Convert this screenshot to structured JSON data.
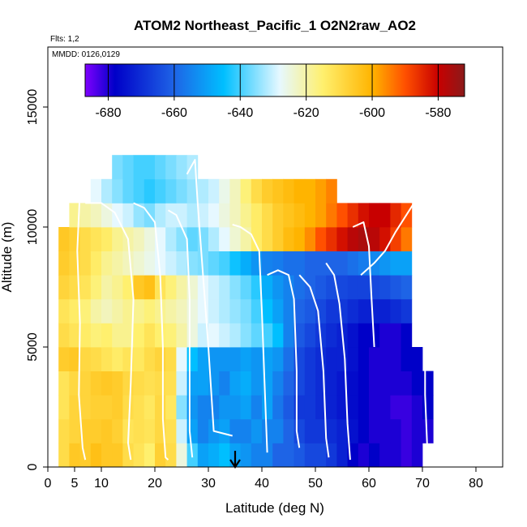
{
  "chart_data": {
    "type": "heatmap",
    "title": "ATOM2 Northeast_Pacific_1 O2N2raw_AO2",
    "flights_label": "Flts: 1,2",
    "dates_label": "MMDD: 0126,0129",
    "xlabel": "Latitude (deg N)",
    "ylabel": "Altitude (m)",
    "xlim": [
      0,
      85
    ],
    "ylim": [
      0,
      17500
    ],
    "xticks": [
      0,
      5,
      10,
      20,
      30,
      40,
      50,
      60,
      70,
      80
    ],
    "yticks": [
      0,
      5000,
      10000,
      15000
    ],
    "colorbar": {
      "min": -687,
      "max": -572,
      "ticks": [
        -680,
        -660,
        -640,
        -620,
        -600,
        -580
      ],
      "colors": [
        "#7f00ff",
        "#0000c8",
        "#1e64e6",
        "#00bfff",
        "#e6f8ff",
        "#fff06e",
        "#ffb400",
        "#ff5000",
        "#c80000",
        "#8b1a1a"
      ],
      "stops": [
        -687,
        -678,
        -660,
        -645,
        -628,
        -615,
        -600,
        -590,
        -580,
        -572
      ]
    },
    "grid": false,
    "arrow_marker_latitude": 35,
    "latitude_bins": [
      3,
      5,
      7,
      9,
      11,
      13,
      15,
      17,
      19,
      21,
      23,
      25,
      27,
      29,
      31,
      33,
      35,
      37,
      39,
      41,
      43,
      45,
      47,
      49,
      51,
      53,
      55,
      57,
      59,
      61,
      63,
      65,
      67,
      69,
      71
    ],
    "altitude_bins": [
      500,
      1500,
      2500,
      3500,
      4500,
      5500,
      6500,
      7500,
      8500,
      9500,
      10500,
      11500,
      12500
    ],
    "values": [
      [
        -610,
        -605,
        -606,
        -603,
        -605,
        -605,
        -610,
        -612,
        -615,
        -607,
        -610,
        -625,
        -640,
        -650,
        -648,
        -645,
        -650,
        -652,
        -655,
        -655,
        -660,
        -660,
        -662,
        -665,
        -665,
        -668,
        -672,
        -678,
        -680,
        -678,
        -680,
        -680,
        -682,
        -680,
        null
      ],
      [
        -610,
        -608,
        -606,
        -606,
        -605,
        -607,
        -612,
        -611,
        -612,
        -609,
        -611,
        -630,
        -650,
        -655,
        -652,
        -650,
        -655,
        -655,
        -652,
        -655,
        -655,
        -660,
        -665,
        -668,
        -668,
        -670,
        -672,
        -675,
        -678,
        -680,
        -680,
        -680,
        -682,
        -680,
        -680
      ],
      [
        -612,
        -608,
        -608,
        -607,
        -607,
        -606,
        -610,
        -611,
        -613,
        -609,
        -613,
        -635,
        -652,
        -655,
        -655,
        -652,
        -652,
        -650,
        -655,
        -650,
        -657,
        -662,
        -668,
        -668,
        -670,
        -672,
        -674,
        -676,
        -678,
        -680,
        -680,
        -682,
        -682,
        -680,
        -678
      ],
      [
        -612,
        -609,
        -608,
        -606,
        -605,
        -606,
        -609,
        -610,
        -611,
        -610,
        -611,
        -630,
        -650,
        -650,
        -652,
        -655,
        -650,
        -648,
        -652,
        -650,
        -655,
        -660,
        -665,
        -668,
        -670,
        -672,
        -674,
        -676,
        -678,
        -680,
        -680,
        -680,
        -680,
        -678,
        -678
      ],
      [
        -606,
        -605,
        -609,
        -610,
        -612,
        -614,
        -612,
        -613,
        -610,
        -608,
        -610,
        -628,
        -645,
        -650,
        -652,
        -652,
        -652,
        -650,
        -652,
        -650,
        -652,
        -658,
        -665,
        -668,
        -670,
        -672,
        -672,
        -675,
        -678,
        -680,
        -680,
        -680,
        -678,
        -678,
        null
      ],
      [
        -610,
        -612,
        -614,
        -616,
        -615,
        -618,
        -618,
        -615,
        -612,
        -615,
        -616,
        -620,
        -625,
        -630,
        -628,
        -630,
        -632,
        -635,
        -638,
        -640,
        -645,
        -655,
        -662,
        -665,
        -668,
        -670,
        -672,
        -675,
        -678,
        -678,
        -680,
        -680,
        -678,
        null,
        null
      ],
      [
        -612,
        -614,
        -616,
        -620,
        -622,
        -620,
        -618,
        -618,
        -616,
        -618,
        -620,
        -622,
        -625,
        -628,
        -630,
        -632,
        -634,
        -636,
        -640,
        -645,
        -650,
        -655,
        -660,
        -662,
        -665,
        -668,
        -668,
        -670,
        -672,
        -672,
        -672,
        -670,
        -668,
        null,
        null
      ],
      [
        -608,
        -610,
        -612,
        -616,
        -620,
        -618,
        -615,
        -605,
        -603,
        -612,
        -616,
        -620,
        -624,
        -628,
        -630,
        -632,
        -635,
        -638,
        -642,
        -648,
        -652,
        -655,
        -658,
        -660,
        -662,
        -664,
        -665,
        -666,
        -666,
        -665,
        -664,
        -662,
        -660,
        null,
        null
      ],
      [
        -606,
        -608,
        -610,
        -614,
        -618,
        -620,
        -622,
        -624,
        -626,
        -628,
        -630,
        -632,
        -635,
        -636,
        -638,
        -640,
        -644,
        -648,
        -652,
        -655,
        -656,
        -658,
        -658,
        -660,
        -660,
        -660,
        -660,
        -658,
        -656,
        -654,
        -652,
        -650,
        -650,
        null,
        null
      ],
      [
        -605,
        -607,
        -610,
        -612,
        -614,
        -618,
        -620,
        -622,
        -625,
        -628,
        -632,
        -635,
        -638,
        -636,
        -632,
        -628,
        -624,
        -620,
        -614,
        -610,
        -606,
        -602,
        -600,
        -596,
        -590,
        -586,
        -582,
        -578,
        -576,
        -578,
        -582,
        -588,
        -594,
        null,
        null
      ],
      [
        null,
        -618,
        -620,
        -622,
        -625,
        -628,
        -630,
        -634,
        -636,
        -632,
        -630,
        -630,
        -632,
        -630,
        -628,
        -625,
        -622,
        -618,
        -614,
        -610,
        -606,
        -604,
        -602,
        -600,
        -598,
        -594,
        -590,
        -586,
        -582,
        -580,
        -580,
        -585,
        -590,
        null,
        null
      ],
      [
        null,
        null,
        null,
        -628,
        -632,
        -635,
        -638,
        -640,
        -642,
        -640,
        -638,
        -636,
        -634,
        -632,
        -630,
        -626,
        -622,
        -616,
        -610,
        -606,
        -604,
        -602,
        -600,
        -600,
        -598,
        -595,
        null,
        null,
        null,
        null,
        null,
        null,
        null,
        null,
        null
      ],
      [
        null,
        null,
        null,
        null,
        null,
        -636,
        -638,
        -640,
        -640,
        -638,
        -636,
        -634,
        -632,
        null,
        null,
        null,
        null,
        null,
        null,
        null,
        null,
        null,
        null,
        null,
        null,
        null,
        null,
        null,
        null,
        null,
        null,
        null,
        null,
        null,
        null
      ]
    ],
    "flight_tracks": [
      [
        [
          6,
          11500
        ],
        [
          5.5,
          9000
        ],
        [
          6,
          6000
        ],
        [
          5.8,
          3000
        ],
        [
          6.5,
          800
        ],
        [
          7,
          300
        ]
      ],
      [
        [
          7,
          11000
        ],
        [
          10,
          11000
        ],
        [
          12.5,
          10600
        ],
        [
          15,
          9500
        ],
        [
          16,
          7000
        ],
        [
          15.5,
          3500
        ],
        [
          15,
          1000
        ],
        [
          15.5,
          300
        ]
      ],
      [
        [
          16,
          11000
        ],
        [
          18,
          10800
        ],
        [
          20,
          10200
        ],
        [
          21,
          8000
        ],
        [
          21.5,
          5000
        ],
        [
          21.5,
          2000
        ],
        [
          22,
          400
        ],
        [
          22.5,
          300
        ]
      ],
      [
        [
          22.5,
          10700
        ],
        [
          24,
          10500
        ],
        [
          26,
          9500
        ],
        [
          26.5,
          7000
        ],
        [
          26.5,
          4000
        ],
        [
          26.5,
          1500
        ],
        [
          27,
          400
        ]
      ],
      [
        [
          26,
          12200
        ],
        [
          27.5,
          12800
        ],
        [
          28,
          11000
        ],
        [
          29,
          8000
        ],
        [
          30,
          5000
        ],
        [
          31,
          1500
        ],
        [
          34.5,
          1300
        ]
      ],
      [
        [
          34.5,
          10100
        ],
        [
          36,
          10000
        ],
        [
          38,
          9700
        ],
        [
          39.5,
          9000
        ],
        [
          40,
          6500
        ],
        [
          40.5,
          3500
        ],
        [
          41,
          600
        ]
      ],
      [
        [
          41,
          8000
        ],
        [
          43,
          8200
        ],
        [
          45,
          8000
        ],
        [
          46,
          7000
        ],
        [
          46.5,
          4000
        ],
        [
          46.5,
          1500
        ],
        [
          47,
          800
        ]
      ],
      [
        [
          47,
          8000
        ],
        [
          49,
          7500
        ],
        [
          50.5,
          6500
        ],
        [
          51.5,
          4000
        ],
        [
          52,
          1200
        ],
        [
          52.5,
          400
        ]
      ],
      [
        [
          52,
          8500
        ],
        [
          53.5,
          8000
        ],
        [
          54.5,
          6800
        ],
        [
          55.5,
          4500
        ],
        [
          56,
          1800
        ],
        [
          56.5,
          300
        ]
      ],
      [
        [
          57,
          10000
        ],
        [
          59,
          10200
        ],
        [
          60,
          9200
        ],
        [
          60.5,
          7000
        ],
        [
          61,
          5000
        ]
      ],
      [
        [
          58.5,
          8000
        ],
        [
          61,
          8500
        ],
        [
          63,
          9000
        ],
        [
          65,
          9800
        ],
        [
          67,
          10500
        ],
        [
          69,
          11200
        ],
        [
          70,
          9000
        ],
        [
          70.5,
          6000
        ],
        [
          70.5,
          3000
        ],
        [
          71,
          300
        ]
      ]
    ]
  }
}
